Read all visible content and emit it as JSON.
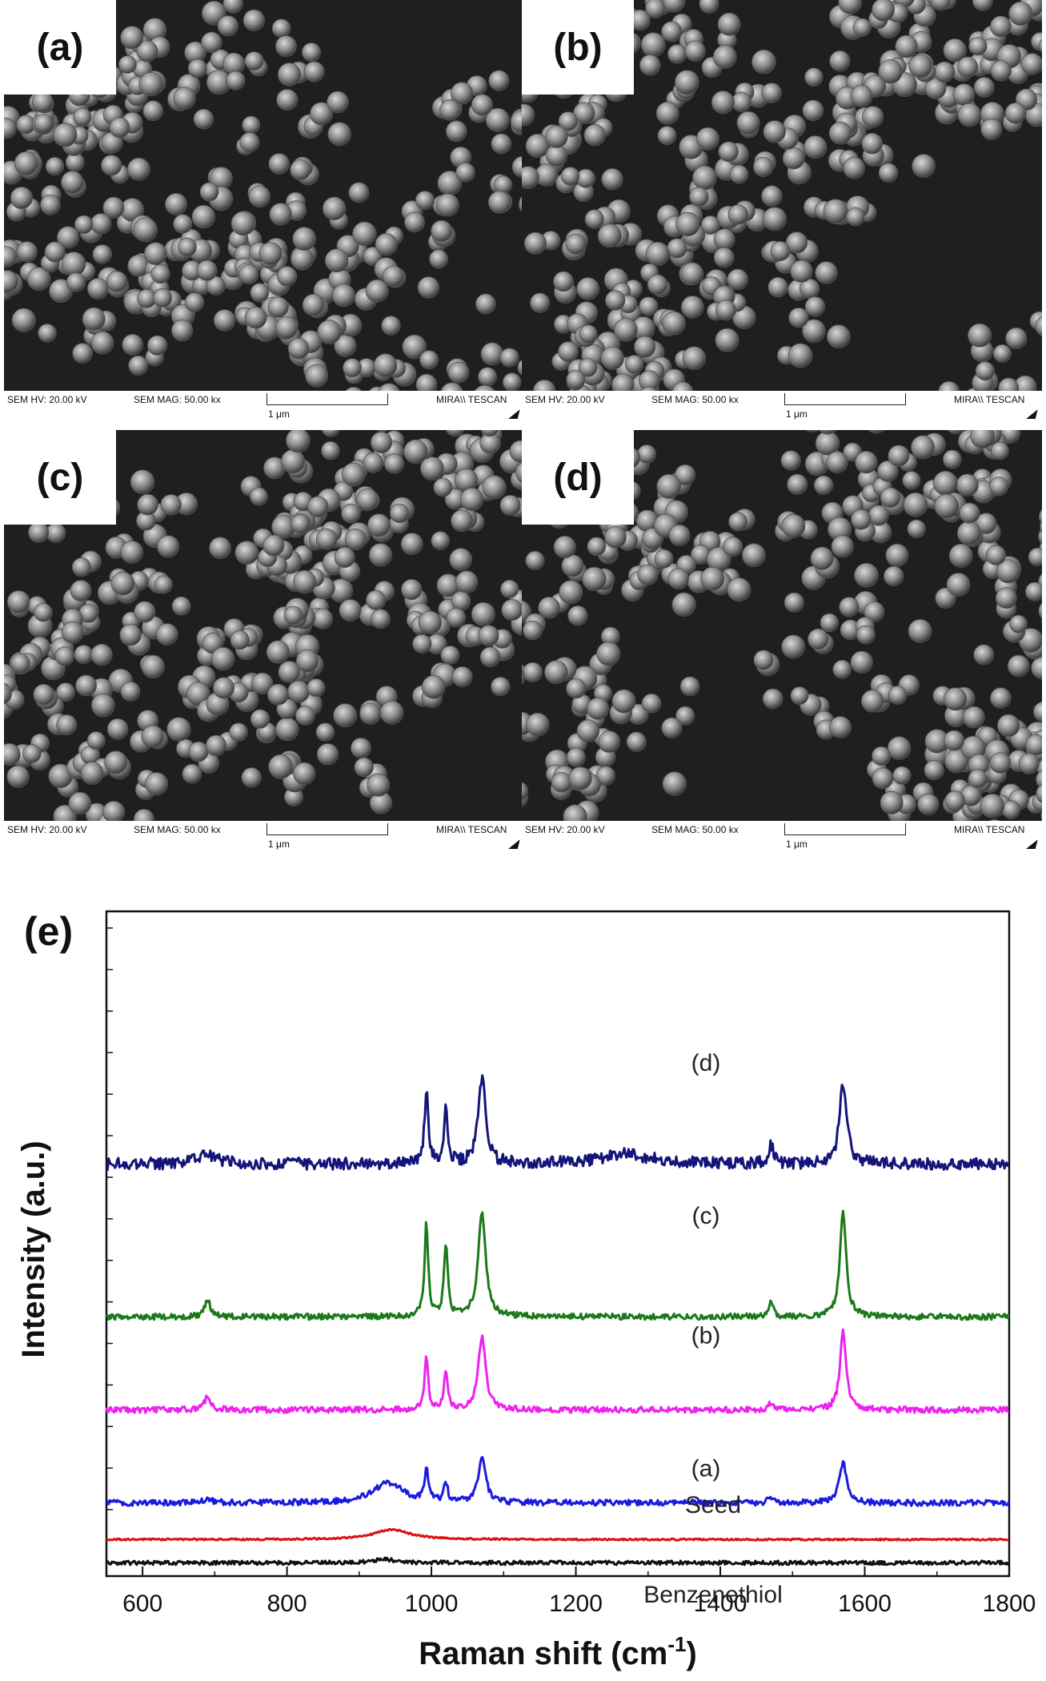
{
  "sem_panels": [
    {
      "label": "(a)",
      "hv": "SEM HV: 20.00 kV",
      "mag": "SEM MAG: 50.00 kx",
      "scale": "1 μm",
      "brand": "MIRA\\\\ TESCAN"
    },
    {
      "label": "(b)",
      "hv": "SEM HV: 20.00 kV",
      "mag": "SEM MAG: 50.00 kx",
      "scale": "1 μm",
      "brand": "MIRA\\\\ TESCAN"
    },
    {
      "label": "(c)",
      "hv": "SEM HV: 20.00 kV",
      "mag": "SEM MAG: 50.00 kx",
      "scale": "1 μm",
      "brand": "MIRA\\\\ TESCAN"
    },
    {
      "label": "(d)",
      "hv": "SEM HV: 20.00 kV",
      "mag": "SEM MAG: 50.00 kx",
      "scale": "1 μm",
      "brand": "MIRA\\\\ TESCAN"
    }
  ],
  "chart_data": {
    "type": "line",
    "panel_label": "(e)",
    "xlabel": "Raman shift (cm",
    "xlabel_sup": "-1",
    "xlabel_end": ")",
    "ylabel": "Intensity (a.u.)",
    "xlim": [
      550,
      1800
    ],
    "ylim": [
      0,
      100
    ],
    "xticks": [
      600,
      800,
      1000,
      1200,
      1400,
      1600,
      1800
    ],
    "grid": false,
    "series": [
      {
        "name": "Benzenethiol",
        "color": "#111111",
        "baseline": 2,
        "label_x": 1390,
        "label_y": -4,
        "peaks": [
          [
            935,
            0.6,
            15
          ]
        ],
        "noise": 0.3
      },
      {
        "name": "Seed",
        "color": "#dd1111",
        "baseline": 5.5,
        "label_x": 1390,
        "label_y": 9.5,
        "peaks": [
          [
            945,
            1.5,
            30
          ]
        ],
        "noise": 0.12
      },
      {
        "name": "(a)",
        "color": "#1a1ae0",
        "baseline": 11,
        "label_x": 1380,
        "label_y": 15,
        "peaks": [
          [
            690,
            0.8,
            6
          ],
          [
            940,
            3,
            25
          ],
          [
            993,
            5,
            3
          ],
          [
            1020,
            3,
            3
          ],
          [
            1070,
            7,
            6
          ],
          [
            1470,
            1,
            4
          ],
          [
            1570,
            6,
            6
          ]
        ],
        "noise": 0.45
      },
      {
        "name": "(b)",
        "color": "#ee22ee",
        "baseline": 25,
        "label_x": 1380,
        "label_y": 35,
        "peaks": [
          [
            690,
            2,
            5
          ],
          [
            993,
            8,
            3
          ],
          [
            1020,
            6,
            3
          ],
          [
            1070,
            11,
            6
          ],
          [
            1470,
            1,
            4
          ],
          [
            1570,
            12,
            5
          ]
        ],
        "noise": 0.45
      },
      {
        "name": "(c)",
        "color": "#1a7a1a",
        "baseline": 39,
        "label_x": 1380,
        "label_y": 53,
        "peaks": [
          [
            690,
            2.5,
            5
          ],
          [
            993,
            14,
            3
          ],
          [
            1020,
            11,
            3
          ],
          [
            1070,
            16,
            6
          ],
          [
            1470,
            2,
            4
          ],
          [
            1570,
            16,
            5
          ]
        ],
        "noise": 0.45
      },
      {
        "name": "(d)",
        "color": "#14147a",
        "baseline": 62,
        "label_x": 1380,
        "label_y": 76,
        "peaks": [
          [
            690,
            1.5,
            15
          ],
          [
            993,
            11,
            3
          ],
          [
            1020,
            8,
            3
          ],
          [
            1070,
            13,
            6
          ],
          [
            1270,
            1.5,
            40
          ],
          [
            1470,
            3,
            4
          ],
          [
            1570,
            12,
            6
          ]
        ],
        "noise": 0.9
      }
    ]
  }
}
